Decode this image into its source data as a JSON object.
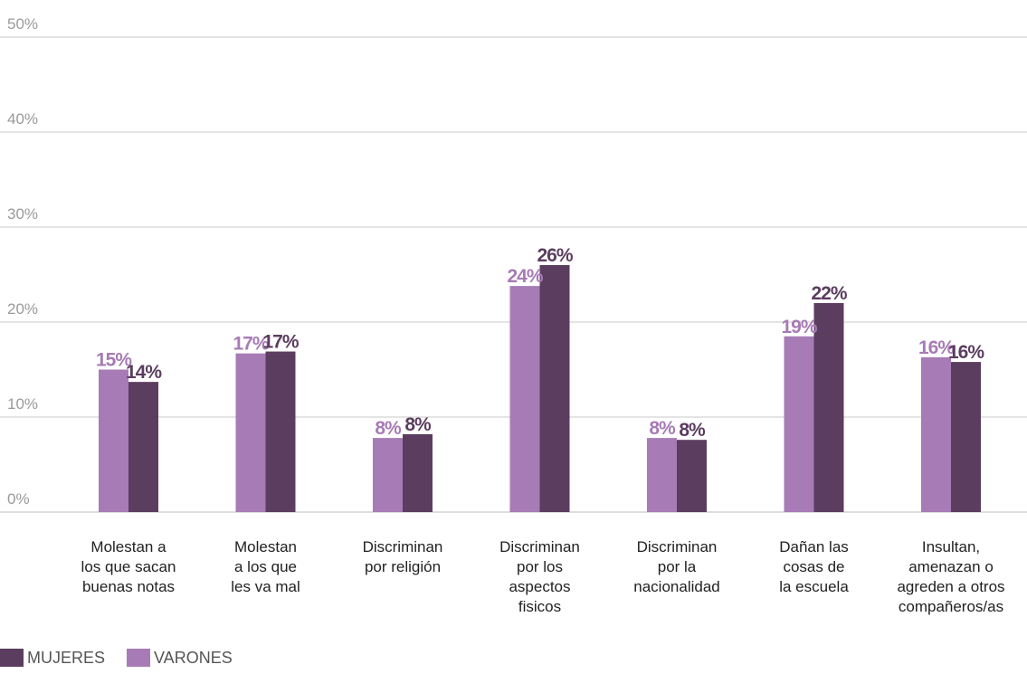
{
  "chart_data": {
    "type": "bar",
    "ylim": [
      0,
      50
    ],
    "y_ticks": [
      "0%",
      "10%",
      "20%",
      "30%",
      "40%",
      "50%"
    ],
    "y_tick_values": [
      0,
      10,
      20,
      30,
      40,
      50
    ],
    "grid": true,
    "legend_position": "bottom-left",
    "categories": [
      [
        "Molestan a",
        "los que sacan",
        "buenas notas"
      ],
      [
        "Molestan",
        "a los que",
        "les va mal"
      ],
      [
        "Discriminan",
        "por religión"
      ],
      [
        "Discriminan",
        "por los",
        "aspectos",
        "fisicos"
      ],
      [
        "Discriminan",
        "por la",
        "nacionalidad"
      ],
      [
        "Dañan las",
        "cosas de",
        "la escuela"
      ],
      [
        "Insultan,",
        "amenazan o",
        "agreden a otros",
        "compañeros/as"
      ]
    ],
    "series": [
      {
        "name": "VARONES",
        "color": "#a77bb5",
        "values": [
          15,
          16.7,
          7.8,
          23.8,
          7.8,
          18.5,
          16.3
        ],
        "labels": [
          "15%",
          "17%",
          "8%",
          "24%",
          "8%",
          "19%",
          "16%"
        ]
      },
      {
        "name": "MUJERES",
        "color": "#5b3d5f",
        "values": [
          13.7,
          16.9,
          8.2,
          26,
          7.6,
          22,
          15.8
        ],
        "labels": [
          "14%",
          "17%",
          "8%",
          "26%",
          "8%",
          "22%",
          "16%"
        ]
      }
    ]
  },
  "legend": {
    "mujeres_label": "MUJERES",
    "mujeres_color": "#5b3d5f",
    "varones_label": "VARONES",
    "varones_color": "#a77bb5"
  }
}
